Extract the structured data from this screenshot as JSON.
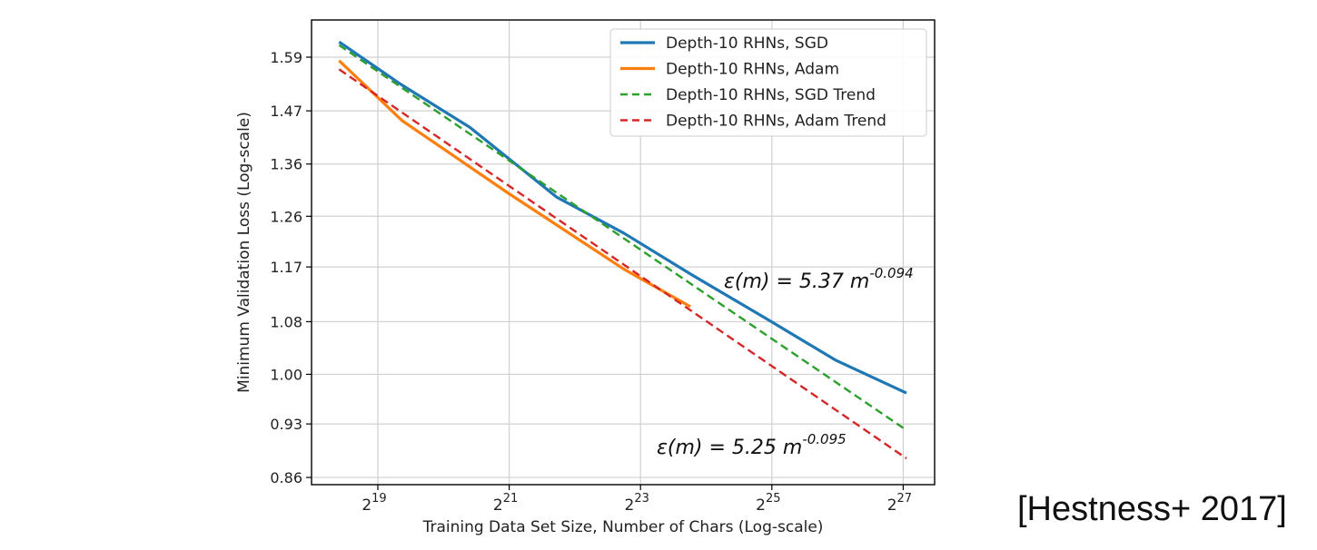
{
  "chart_data": {
    "type": "line",
    "xlabel": "Training Data Set Size, Number of Chars (Log-scale)",
    "ylabel": "Minimum Validation Loss (Log-scale)",
    "x_scale": "log2",
    "y_scale": "log",
    "xlim_log2": [
      17.6,
      27.5
    ],
    "ylim": [
      0.845,
      1.69
    ],
    "x_ticks": [
      {
        "base": "2",
        "exp": "19"
      },
      {
        "base": "2",
        "exp": "21"
      },
      {
        "base": "2",
        "exp": "23"
      },
      {
        "base": "2",
        "exp": "25"
      },
      {
        "base": "2",
        "exp": "27"
      }
    ],
    "y_ticks": [
      "1.59",
      "1.47",
      "1.36",
      "1.26",
      "1.17",
      "1.08",
      "1.00",
      "0.93",
      "0.86"
    ],
    "grid": true,
    "legend_position": "top-right",
    "series": [
      {
        "name": "Depth-10 RHNs, SGD",
        "color": "#1f77b4",
        "style": "solid",
        "x_log2": [
          18.41,
          19.33,
          20.4,
          21.72,
          22.75,
          23.76,
          24.96,
          25.97,
          27.05
        ],
        "y": [
          1.626,
          1.53,
          1.435,
          1.296,
          1.229,
          1.158,
          1.082,
          1.021,
          0.973
        ]
      },
      {
        "name": "Depth-10 RHNs, Adam",
        "color": "#ff7f0e",
        "style": "solid",
        "x_log2": [
          18.41,
          19.37,
          20.99,
          22.75,
          23.76
        ],
        "y": [
          1.582,
          1.449,
          1.303,
          1.166,
          1.104
        ]
      },
      {
        "name": "Depth-10 RHNs, SGD Trend",
        "color": "#2ca02c",
        "style": "dashed",
        "coef": 5.37,
        "exponent": -0.094,
        "x_log2_range": [
          18.41,
          27.05
        ]
      },
      {
        "name": "Depth-10 RHNs, Adam Trend",
        "color": "#d62728",
        "style": "dashed",
        "coef": 5.25,
        "exponent": -0.095,
        "x_log2_range": [
          18.41,
          27.05
        ]
      }
    ],
    "annotations": [
      {
        "text": "ε(m) = 5.37 m",
        "sup": "-0.094"
      },
      {
        "text": "ε(m) = 5.25 m",
        "sup": "-0.095"
      }
    ]
  },
  "citation": "[Hestness+ 2017]"
}
